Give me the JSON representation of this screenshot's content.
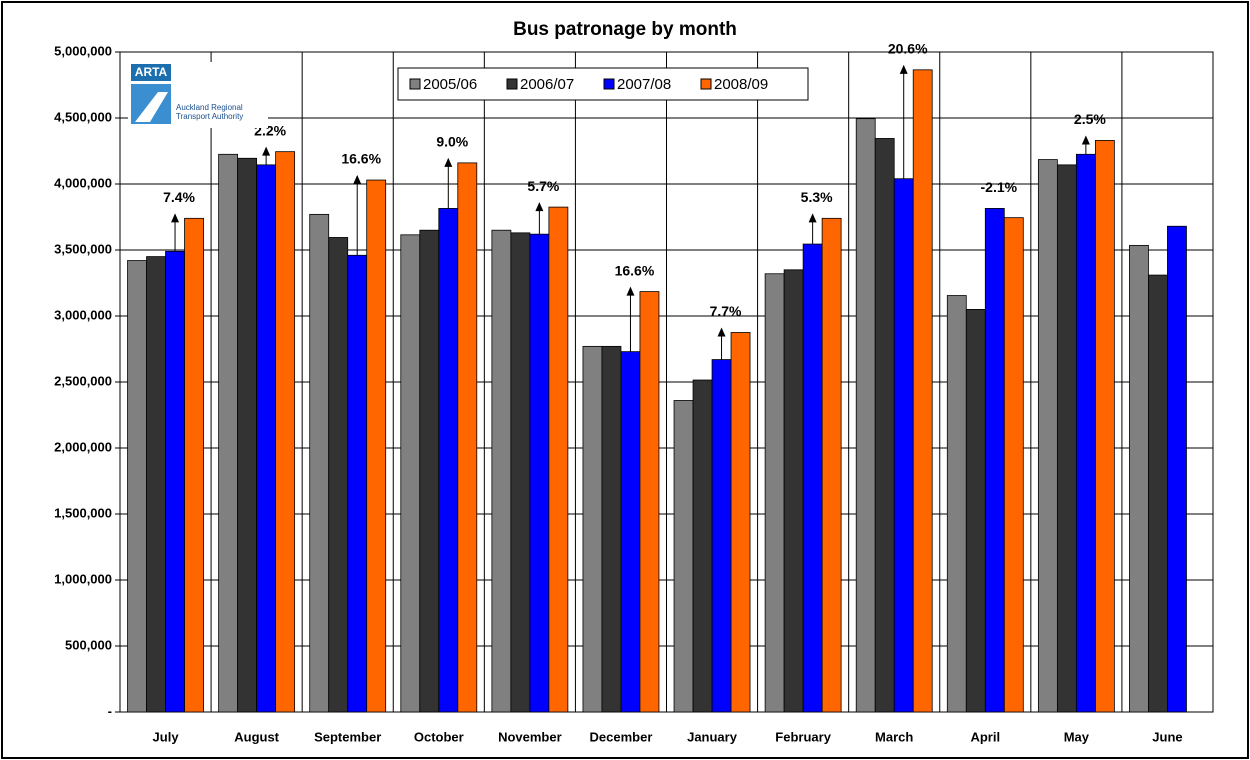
{
  "chart_data": {
    "type": "bar",
    "title": "Bus patronage by month",
    "categories": [
      "July",
      "August",
      "September",
      "October",
      "November",
      "December",
      "January",
      "February",
      "March",
      "April",
      "May",
      "June"
    ],
    "series": [
      {
        "name": "2005/06",
        "color": "#808080",
        "values": [
          3420000,
          4225000,
          3770000,
          3615000,
          3650000,
          2770000,
          2360000,
          3320000,
          4495000,
          3155000,
          4185000,
          3535000
        ]
      },
      {
        "name": "2006/07",
        "color": "#333333",
        "values": [
          3450000,
          4195000,
          3595000,
          3650000,
          3630000,
          2770000,
          2515000,
          3350000,
          4345000,
          3050000,
          4145000,
          3310000
        ]
      },
      {
        "name": "2007/08",
        "color": "#0000ff",
        "values": [
          3490000,
          4145000,
          3460000,
          3815000,
          3620000,
          2730000,
          2670000,
          3545000,
          4040000,
          3815000,
          4225000,
          3680000
        ]
      },
      {
        "name": "2008/09",
        "color": "#ff6600",
        "values": [
          3740000,
          4245000,
          4030000,
          4160000,
          3825000,
          3185000,
          2875000,
          3740000,
          4865000,
          3745000,
          4330000,
          null
        ]
      }
    ],
    "annotations": [
      "7.4%",
      "2.2%",
      "16.6%",
      "9.0%",
      "5.7%",
      "16.6%",
      "7.7%",
      "5.3%",
      "20.6%",
      "-2.1%",
      "2.5%",
      null
    ],
    "ylim": [
      0,
      5000000
    ],
    "yticks": [
      {
        "value": 0,
        "label": "-"
      },
      {
        "value": 500000,
        "label": "500,000"
      },
      {
        "value": 1000000,
        "label": "1,000,000"
      },
      {
        "value": 1500000,
        "label": "1,500,000"
      },
      {
        "value": 2000000,
        "label": "2,000,000"
      },
      {
        "value": 2500000,
        "label": "2,500,000"
      },
      {
        "value": 3000000,
        "label": "3,000,000"
      },
      {
        "value": 3500000,
        "label": "3,500,000"
      },
      {
        "value": 4000000,
        "label": "4,000,000"
      },
      {
        "value": 4500000,
        "label": "4,500,000"
      },
      {
        "value": 5000000,
        "label": "5,000,000"
      }
    ],
    "grid": true,
    "legend": "top",
    "logo": {
      "name": "ARTA",
      "lines": [
        "Auckland Regional",
        "Transport Authority"
      ]
    }
  }
}
